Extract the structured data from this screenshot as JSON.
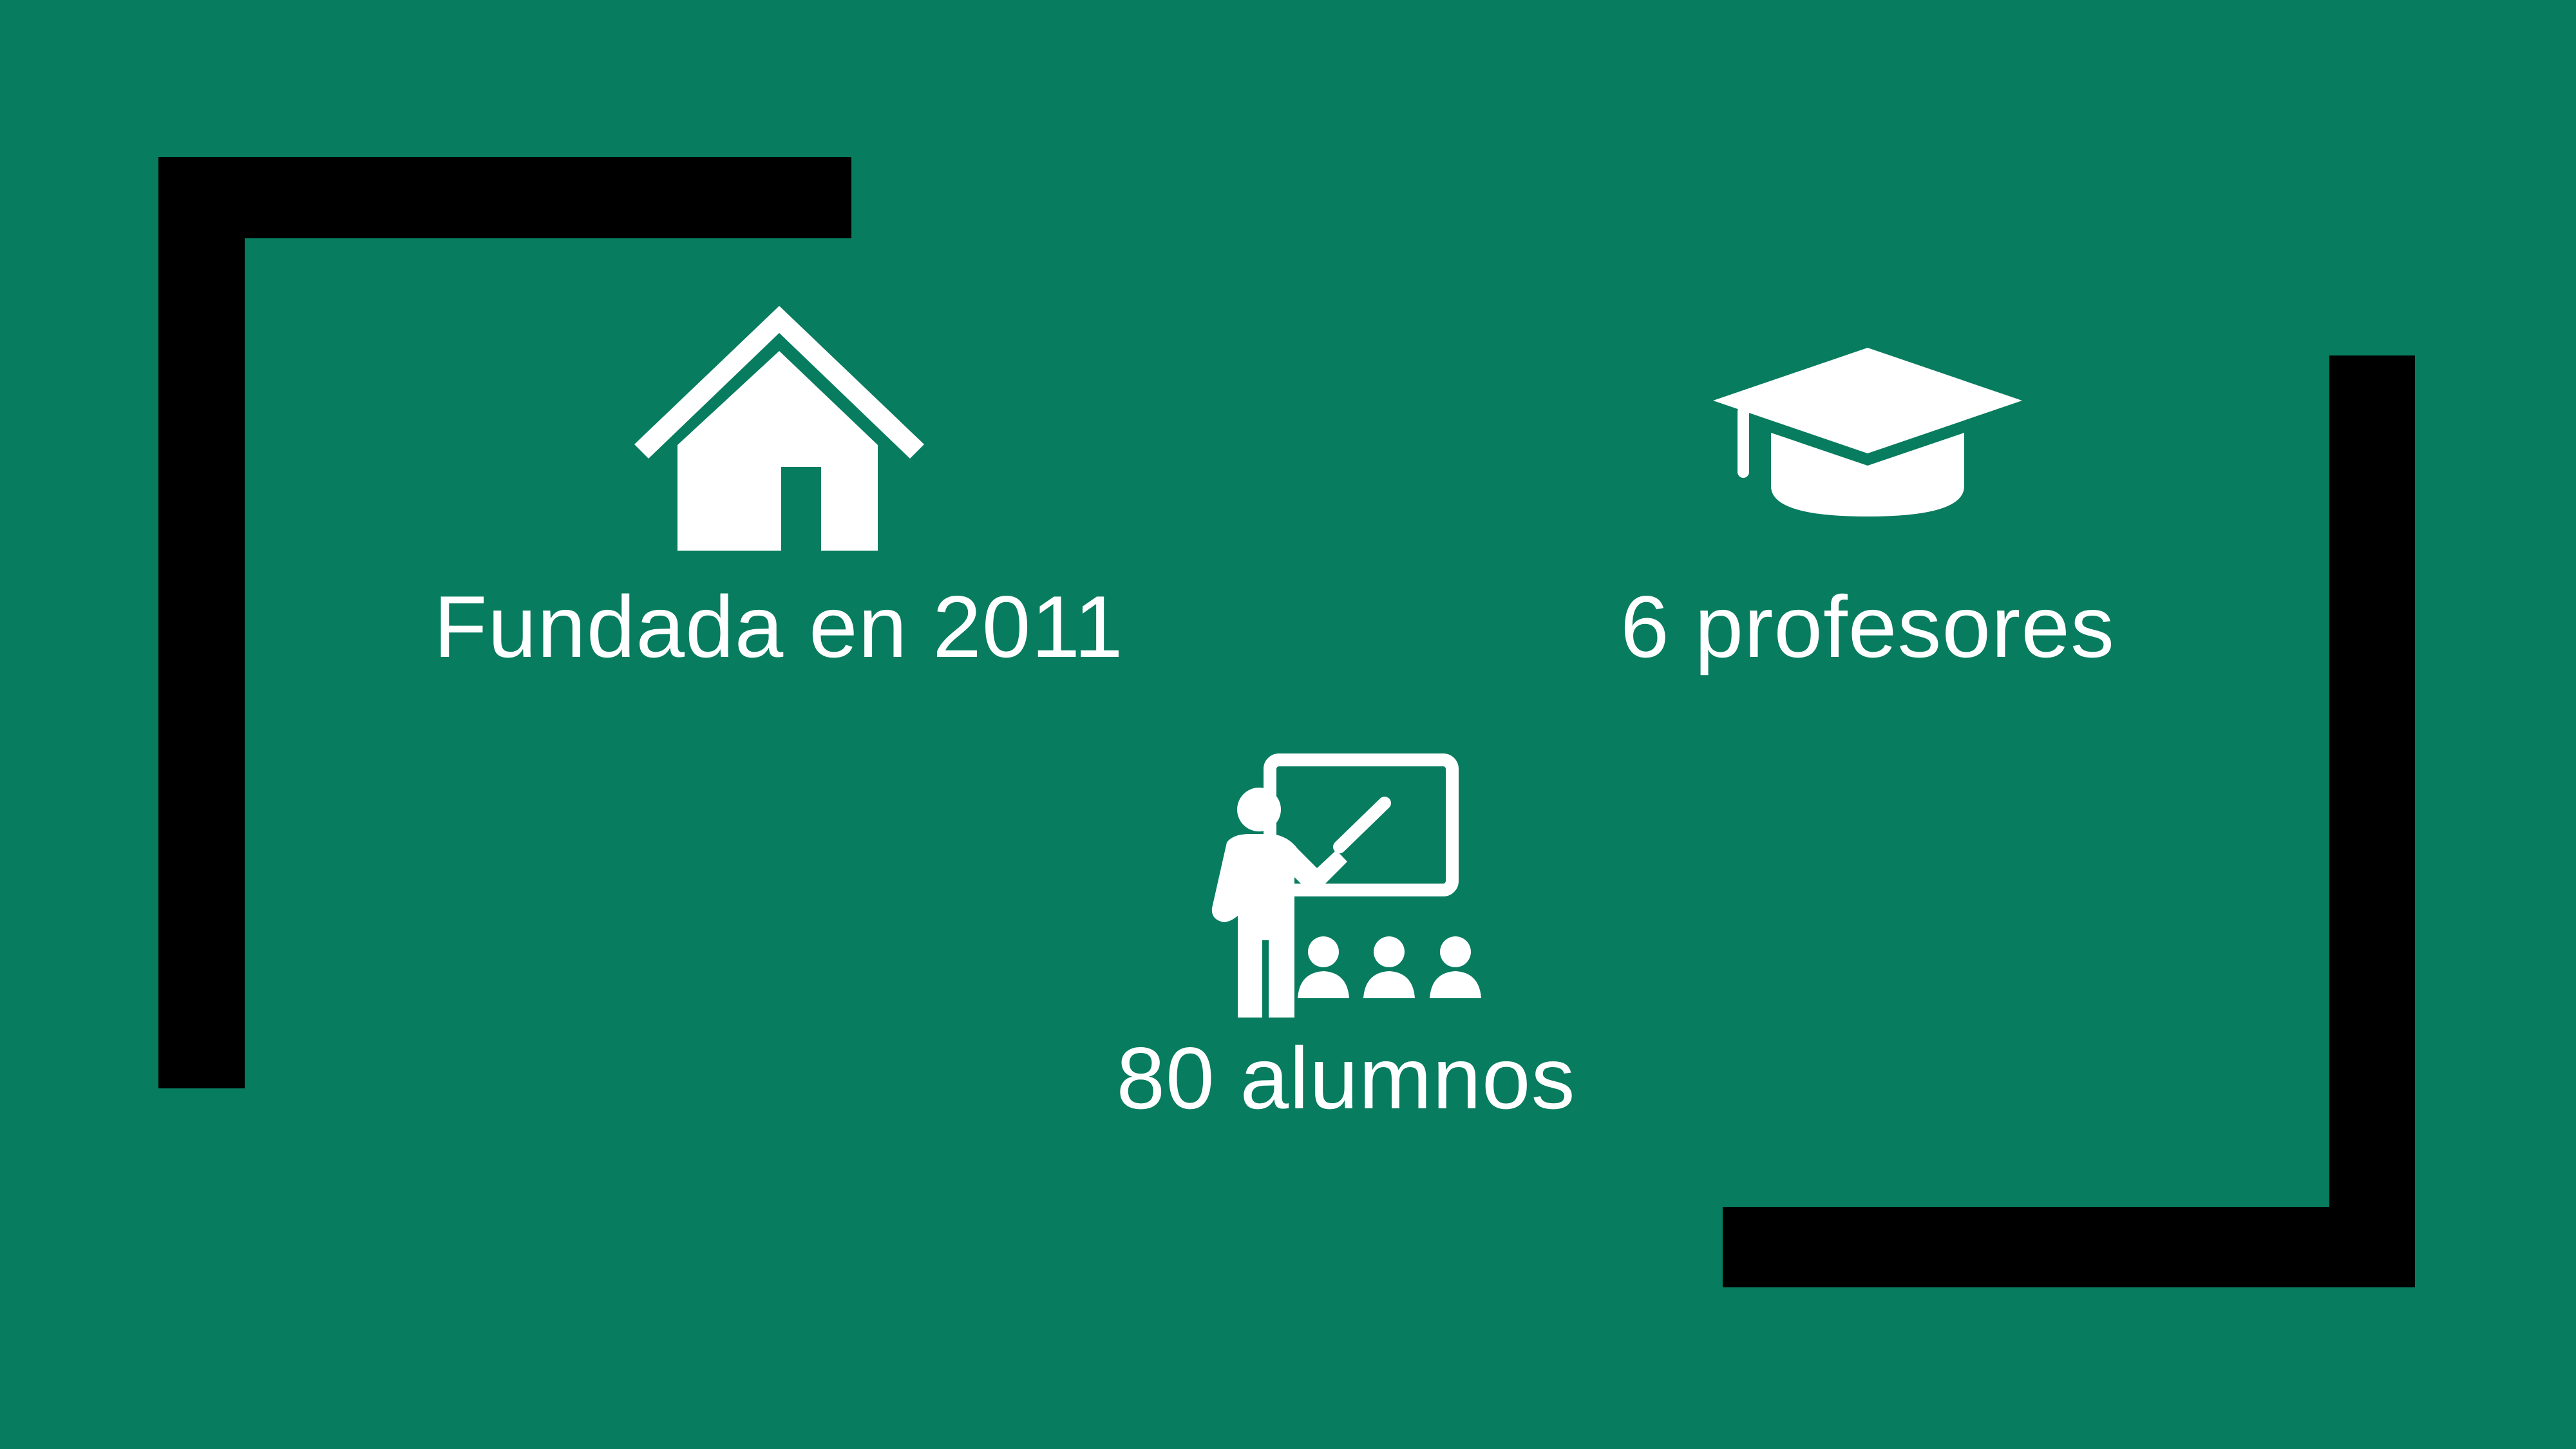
{
  "slide": {
    "background_color": "#077c5f",
    "accent_color": "#000000",
    "text_color": "#ffffff"
  },
  "stats": [
    {
      "icon": "house-icon",
      "label": "Fundada en 2011"
    },
    {
      "icon": "graduation-cap-icon",
      "label": "6 profesores"
    },
    {
      "icon": "teacher-classroom-icon",
      "label": "80 alumnos"
    }
  ]
}
